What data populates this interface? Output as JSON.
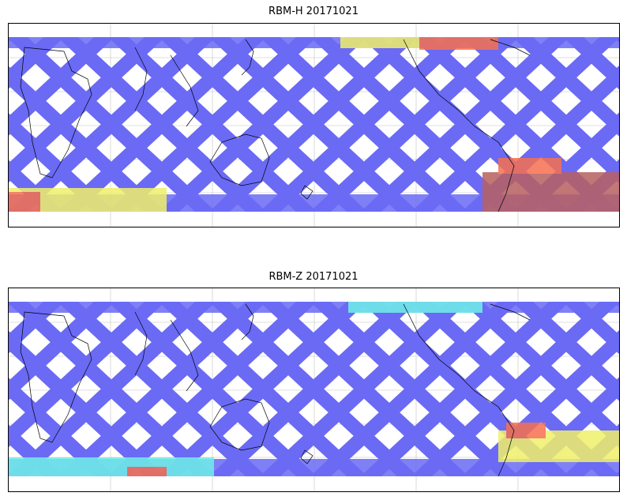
{
  "panels": [
    {
      "title": "RBM-H 20171021",
      "colormap": "jet",
      "band_low_hex": "#6666ff",
      "band_high_hex": "#b85c5c"
    },
    {
      "title": "RBM-Z 20171021",
      "colormap": "jet",
      "band_low_hex": "#6666ff",
      "band_high_hex": "#ff8855"
    }
  ],
  "colors": {
    "low": "#6a6af5",
    "mid_low": "#5ab4f5",
    "mid": "#6ef0e6",
    "mid_high": "#f0f06a",
    "high": "#f57050",
    "max": "#b86060",
    "coastline": "#000000",
    "grid": "#bfbfbf"
  }
}
